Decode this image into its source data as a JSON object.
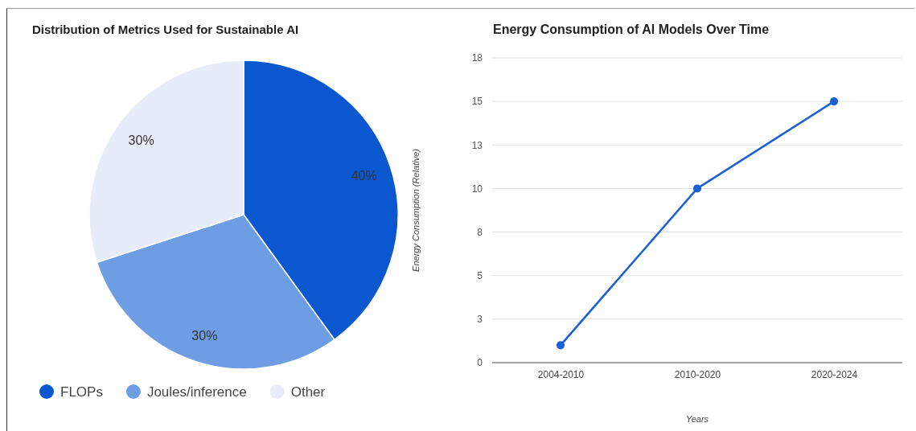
{
  "chart_data": [
    {
      "type": "pie",
      "title": "Distribution of Metrics Used for Sustainable AI",
      "categories": [
        "FLOPs",
        "Joules/inference",
        "Other"
      ],
      "values": [
        40,
        30,
        30
      ],
      "colors": [
        "#0b57d0",
        "#6d9de3",
        "#e6ecf8"
      ],
      "value_labels": [
        "40%",
        "30%",
        "30%"
      ],
      "legend": "bottom"
    },
    {
      "type": "line",
      "title": "Energy Consumption of AI Models Over Time",
      "xlabel": "Years",
      "ylabel": "Energy Consumption (Relative)",
      "categories": [
        "2004-2010",
        "2010-2020",
        "2020-2024"
      ],
      "series": [
        {
          "color": "#1a5fd6",
          "values": [
            1,
            10,
            15
          ]
        }
      ],
      "ylim": [
        0,
        17.5
      ],
      "yticks": [
        0,
        {
          "value": 2.5,
          "label": "3"
        },
        5,
        {
          "value": 7.5,
          "label": "8"
        },
        10,
        {
          "value": 12.5,
          "label": "13"
        },
        15,
        {
          "value": 17.5,
          "label": "18"
        }
      ],
      "grid": "y",
      "marker": "circle",
      "line_style": "solid"
    }
  ]
}
